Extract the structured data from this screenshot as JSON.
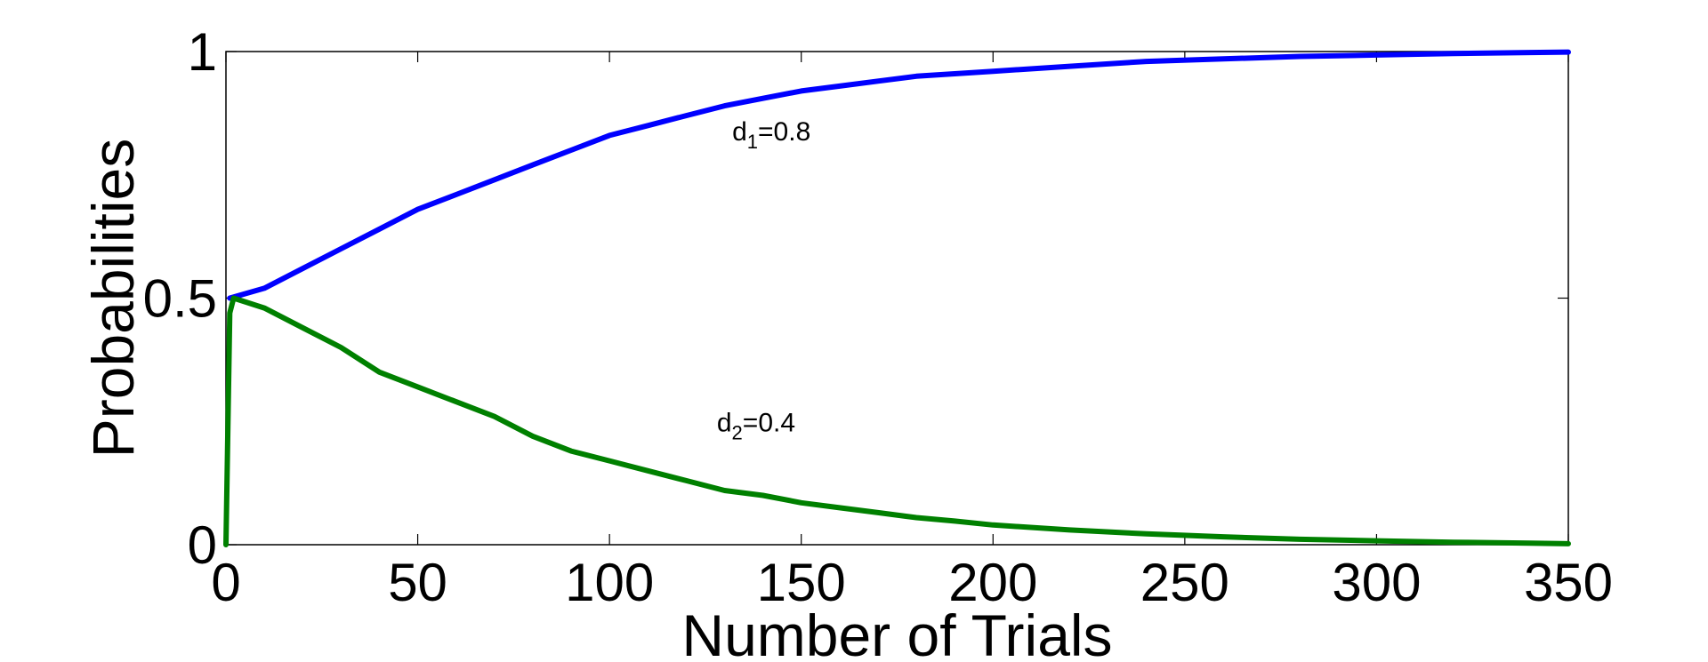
{
  "chart_data": {
    "type": "line",
    "title": "",
    "xlabel": "Number of Trials",
    "ylabel": "Probabilities",
    "xlim": [
      0,
      350
    ],
    "ylim": [
      0,
      1
    ],
    "xticks": [
      0,
      50,
      100,
      150,
      200,
      250,
      300,
      350
    ],
    "yticks": [
      0,
      0.5,
      1
    ],
    "xtick_labels": [
      "0",
      "50",
      "100",
      "150",
      "200",
      "250",
      "300",
      "350"
    ],
    "ytick_labels": [
      "0",
      "0.5",
      "1"
    ],
    "grid": false,
    "series": [
      {
        "name": "",
        "color": "#0000ff",
        "x": [
          1,
          10,
          20,
          30,
          40,
          50,
          60,
          70,
          80,
          90,
          100,
          110,
          120,
          130,
          140,
          150,
          160,
          170,
          180,
          190,
          200,
          220,
          240,
          260,
          280,
          300,
          320,
          340,
          350
        ],
        "y": [
          0.5,
          0.52,
          0.56,
          0.6,
          0.64,
          0.68,
          0.71,
          0.74,
          0.77,
          0.8,
          0.83,
          0.85,
          0.87,
          0.89,
          0.905,
          0.92,
          0.93,
          0.94,
          0.95,
          0.955,
          0.96,
          0.97,
          0.98,
          0.985,
          0.99,
          0.993,
          0.996,
          0.998,
          0.999
        ]
      },
      {
        "name": "",
        "color": "#008000",
        "x": [
          0,
          1,
          2,
          10,
          20,
          30,
          40,
          50,
          60,
          70,
          80,
          90,
          100,
          110,
          120,
          130,
          140,
          150,
          160,
          170,
          180,
          190,
          200,
          220,
          240,
          260,
          280,
          300,
          320,
          340,
          350
        ],
        "y": [
          0,
          0.47,
          0.5,
          0.48,
          0.44,
          0.4,
          0.35,
          0.32,
          0.29,
          0.26,
          0.22,
          0.19,
          0.17,
          0.15,
          0.13,
          0.11,
          0.1,
          0.085,
          0.075,
          0.065,
          0.055,
          0.048,
          0.04,
          0.03,
          0.022,
          0.016,
          0.011,
          0.008,
          0.005,
          0.003,
          0.002
        ]
      }
    ],
    "annotations": [
      {
        "base": "d",
        "sub": "1",
        "rest": "=0.8",
        "x": 132,
        "y": 0.82
      },
      {
        "base": "d",
        "sub": "2",
        "rest": "=0.4",
        "x": 128,
        "y": 0.23
      }
    ]
  }
}
